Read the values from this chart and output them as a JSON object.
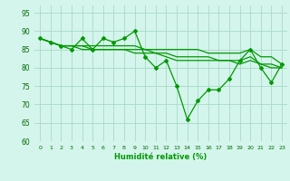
{
  "xlabel": "Humidité relative (%)",
  "bg_color": "#d4f5ec",
  "grid_color": "#a8d9c8",
  "line_color": "#009900",
  "ylim": [
    60,
    97
  ],
  "xlim": [
    -0.5,
    23.5
  ],
  "yticks": [
    60,
    65,
    70,
    75,
    80,
    85,
    90,
    95
  ],
  "xticks": [
    0,
    1,
    2,
    3,
    4,
    5,
    6,
    7,
    8,
    9,
    10,
    11,
    12,
    13,
    14,
    15,
    16,
    17,
    18,
    19,
    20,
    21,
    22,
    23
  ],
  "series": [
    [
      88,
      87,
      86,
      85,
      88,
      85,
      88,
      87,
      88,
      90,
      83,
      80,
      82,
      75,
      66,
      71,
      74,
      74,
      77,
      82,
      85,
      80,
      76,
      81
    ],
    [
      88,
      87,
      86,
      86,
      86,
      86,
      86,
      86,
      86,
      86,
      85,
      85,
      85,
      85,
      85,
      85,
      84,
      84,
      84,
      84,
      85,
      83,
      83,
      81
    ],
    [
      88,
      87,
      86,
      86,
      86,
      85,
      85,
      85,
      85,
      85,
      85,
      84,
      84,
      83,
      83,
      83,
      83,
      82,
      82,
      82,
      83,
      81,
      81,
      80
    ],
    [
      88,
      87,
      86,
      86,
      85,
      85,
      85,
      85,
      85,
      84,
      84,
      84,
      83,
      82,
      82,
      82,
      82,
      82,
      82,
      81,
      82,
      81,
      80,
      80
    ]
  ]
}
